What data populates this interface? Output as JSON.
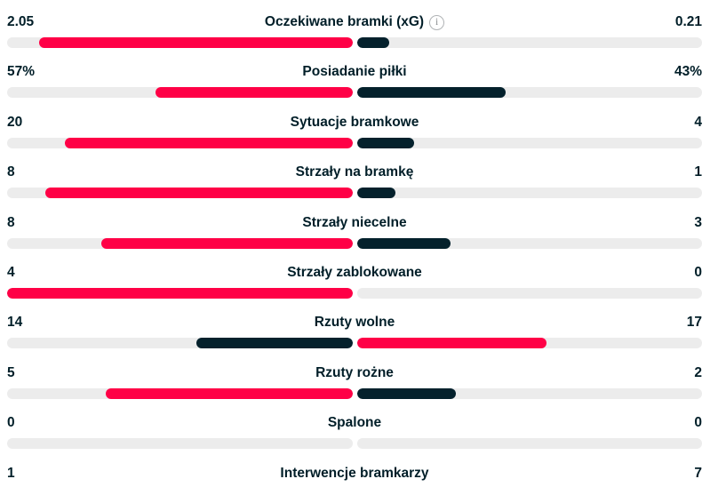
{
  "panel": {
    "name": "match-statistics"
  },
  "colors": {
    "leader_bar": "#ff0046",
    "trailer_bar": "#04212c",
    "bar_track": "#ececec",
    "text": "#001e28",
    "info_icon": "#8a8d90"
  },
  "icons": {
    "info_glyph": "i"
  },
  "rows": [
    {
      "label": "Oczekiwane bramki (xG)",
      "home": "2.05",
      "away": "0.21",
      "home_val": 2.05,
      "away_val": 0.21,
      "info_icon": true
    },
    {
      "label": "Posiadanie piłki",
      "home": "57%",
      "away": "43%",
      "home_val": 57,
      "away_val": 43,
      "info_icon": false
    },
    {
      "label": "Sytuacje bramkowe",
      "home": "20",
      "away": "4",
      "home_val": 20,
      "away_val": 4,
      "info_icon": false
    },
    {
      "label": "Strzały na bramkę",
      "home": "8",
      "away": "1",
      "home_val": 8,
      "away_val": 1,
      "info_icon": false
    },
    {
      "label": "Strzały niecelne",
      "home": "8",
      "away": "3",
      "home_val": 8,
      "away_val": 3,
      "info_icon": false
    },
    {
      "label": "Strzały zablokowane",
      "home": "4",
      "away": "0",
      "home_val": 4,
      "away_val": 0,
      "info_icon": false
    },
    {
      "label": "Rzuty wolne",
      "home": "14",
      "away": "17",
      "home_val": 14,
      "away_val": 17,
      "info_icon": false
    },
    {
      "label": "Rzuty rożne",
      "home": "5",
      "away": "2",
      "home_val": 5,
      "away_val": 2,
      "info_icon": false
    },
    {
      "label": "Spalone",
      "home": "0",
      "away": "0",
      "home_val": 0,
      "away_val": 0,
      "info_icon": false
    },
    {
      "label": "Interwencje bramkarzy",
      "home": "1",
      "away": "7",
      "home_val": 1,
      "away_val": 7,
      "info_icon": false
    }
  ]
}
